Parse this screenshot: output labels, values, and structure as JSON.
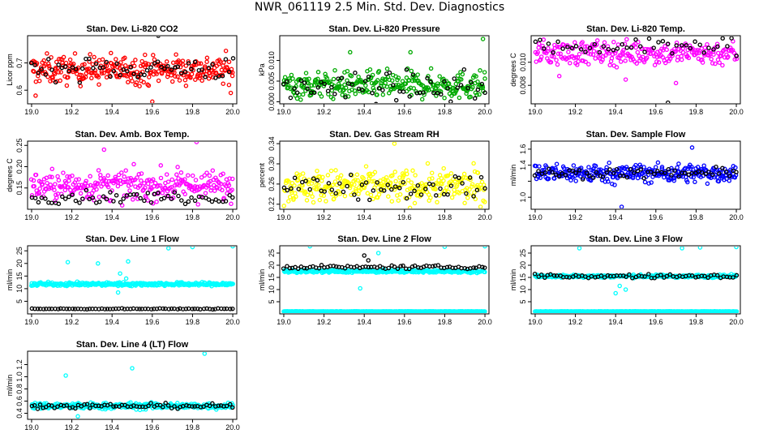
{
  "page": {
    "title": "NWR_061119  2.5 Min. Std. Dev. Diagnostics"
  },
  "chart_data": [
    {
      "type": "scatter",
      "title": "Stan. Dev. Li-820 CO2",
      "ylabel": "Licor ppm",
      "xlim": [
        18.98,
        20.02
      ],
      "ylim": [
        0.55,
        0.8
      ],
      "xticks": [
        "19.0",
        "19.2",
        "19.4",
        "19.6",
        "19.8",
        "20.0"
      ],
      "yticks": [
        0.6,
        0.7
      ],
      "ytick_labels": [
        "0.6",
        "0.7"
      ],
      "series": [
        {
          "color": "#ff0000",
          "n": 300,
          "center": 0.675,
          "spread": 0.045,
          "outliers": [
            [
              19.02,
              0.58
            ],
            [
              19.6,
              0.558
            ],
            [
              19.99,
              0.59
            ]
          ]
        },
        {
          "color": "#000000",
          "n": 60,
          "center": 0.68,
          "spread": 0.035,
          "outliers": [
            [
              19.63,
              0.8
            ]
          ]
        }
      ]
    },
    {
      "type": "scatter",
      "title": "Stan. Dev. Li-820 Pressure",
      "ylabel": "kPa",
      "xlim": [
        18.98,
        20.02
      ],
      "ylim": [
        -0.0005,
        0.016
      ],
      "xticks": [
        "19.0",
        "19.2",
        "19.4",
        "19.6",
        "19.8",
        "20.0"
      ],
      "yticks": [
        0.0,
        0.005,
        0.01
      ],
      "ytick_labels": [
        "0.000",
        "0.005",
        "0.010"
      ],
      "series": [
        {
          "color": "#00aa00",
          "n": 300,
          "center": 0.004,
          "spread": 0.0028,
          "outliers": [
            [
              19.33,
              0.012
            ],
            [
              19.63,
              0.012
            ],
            [
              19.99,
              0.0152
            ]
          ]
        },
        {
          "color": "#000000",
          "n": 60,
          "center": 0.0035,
          "spread": 0.003,
          "outliers": []
        }
      ]
    },
    {
      "type": "scatter",
      "title": "Stan. Dev. Li-820 Temp.",
      "ylabel": "degrees C",
      "xlim": [
        18.98,
        20.02
      ],
      "ylim": [
        0.0064,
        0.0123
      ],
      "xticks": [
        "19.0",
        "19.2",
        "19.4",
        "19.6",
        "19.8",
        "20.0"
      ],
      "yticks": [
        0.008,
        0.01
      ],
      "ytick_labels": [
        "0.008",
        "0.010"
      ],
      "series": [
        {
          "color": "#ff00ff",
          "n": 260,
          "center": 0.0108,
          "spread": 0.0009,
          "outliers": [
            [
              19.12,
              0.0088
            ],
            [
              19.45,
              0.0085
            ],
            [
              19.7,
              0.0082
            ]
          ]
        },
        {
          "color": "#000000",
          "n": 45,
          "center": 0.0114,
          "spread": 0.0007,
          "outliers": [
            [
              19.66,
              0.0065
            ]
          ]
        }
      ]
    },
    {
      "type": "scatter",
      "title": "Stan. Dev. Amb. Box Temp.",
      "ylabel": "degrees C",
      "xlim": [
        18.98,
        20.02
      ],
      "ylim": [
        0.1,
        0.26
      ],
      "xticks": [
        "19.0",
        "19.2",
        "19.4",
        "19.6",
        "19.8",
        "20.0"
      ],
      "yticks": [
        0.15,
        0.2,
        0.25
      ],
      "ytick_labels": [
        "0.15",
        "0.20",
        "0.25"
      ],
      "series": [
        {
          "color": "#ff00ff",
          "n": 280,
          "center": 0.155,
          "spread": 0.03,
          "outliers": [
            [
              19.82,
              0.258
            ],
            [
              19.36,
              0.24
            ]
          ]
        },
        {
          "color": "#000000",
          "n": 60,
          "center": 0.128,
          "spread": 0.012,
          "outliers": []
        }
      ]
    },
    {
      "type": "scatter",
      "title": "Stan. Dev. Gas Stream RH",
      "ylabel": "percent",
      "xlim": [
        18.98,
        20.02
      ],
      "ylim": [
        0.21,
        0.345
      ],
      "xticks": [
        "19.0",
        "19.2",
        "19.4",
        "19.6",
        "19.8",
        "20.0"
      ],
      "yticks": [
        0.22,
        0.26,
        0.3,
        0.34
      ],
      "ytick_labels": [
        "0.22",
        "0.26",
        "0.30",
        "0.34"
      ],
      "series": [
        {
          "color": "#ffff00",
          "n": 300,
          "center": 0.255,
          "spread": 0.028,
          "outliers": [
            [
              19.55,
              0.34
            ]
          ]
        },
        {
          "color": "#000000",
          "n": 55,
          "center": 0.255,
          "spread": 0.02,
          "outliers": []
        }
      ]
    },
    {
      "type": "scatter",
      "title": "Stan. Dev. Sample Flow",
      "ylabel": "ml/min",
      "xlim": [
        18.98,
        20.02
      ],
      "ylim": [
        0.85,
        1.7
      ],
      "xticks": [
        "19.0",
        "19.2",
        "19.4",
        "19.6",
        "19.8",
        "20.0"
      ],
      "yticks": [
        1.0,
        1.2,
        1.4,
        1.6
      ],
      "ytick_labels": [
        "1.0",
        "",
        "1.4",
        "1.6"
      ],
      "series": [
        {
          "color": "#0000ff",
          "n": 300,
          "center": 1.3,
          "spread": 0.1,
          "outliers": [
            [
              19.43,
              0.88
            ],
            [
              19.78,
              1.62
            ]
          ]
        },
        {
          "color": "#000000",
          "n": 60,
          "center": 1.3,
          "spread": 0.05,
          "outliers": []
        }
      ]
    },
    {
      "type": "scatter",
      "title": "Stan. Dev. Line 1 Flow",
      "ylabel": "ml/min",
      "xlim": [
        18.98,
        20.02
      ],
      "ylim": [
        0.0,
        27.0
      ],
      "xticks": [
        "19.0",
        "19.2",
        "19.4",
        "19.6",
        "19.8",
        "20.0"
      ],
      "yticks": [
        5,
        10,
        15,
        20,
        25
      ],
      "ytick_labels": [
        "5",
        "10",
        "15",
        "20",
        "25"
      ],
      "series": [
        {
          "color": "#00ffff",
          "n": 320,
          "center": 11.8,
          "spread": 0.6,
          "outliers": [
            [
              19.18,
              20.5
            ],
            [
              19.33,
              20.0
            ],
            [
              19.48,
              20.8
            ],
            [
              19.44,
              16.0
            ],
            [
              19.43,
              8.5
            ],
            [
              19.68,
              26.0
            ],
            [
              19.8,
              26.5
            ],
            [
              20.0,
              26.8
            ],
            [
              19.47,
              14.0
            ]
          ]
        },
        {
          "color": "#000000",
          "n": 70,
          "center": 2.0,
          "spread": 0.15,
          "outliers": []
        }
      ]
    },
    {
      "type": "scatter",
      "title": "Stan. Dev. Line 2 Flow",
      "ylabel": "ml/min",
      "xlim": [
        18.98,
        20.02
      ],
      "ylim": [
        0.0,
        28.0
      ],
      "xticks": [
        "19.0",
        "19.2",
        "19.4",
        "19.6",
        "19.8",
        "20.0"
      ],
      "yticks": [
        5,
        10,
        15,
        20,
        25
      ],
      "ytick_labels": [
        "5",
        "10",
        "15",
        "20",
        "25"
      ],
      "series": [
        {
          "color": "#00ffff",
          "n": 300,
          "center": 17.5,
          "spread": 0.5,
          "outliers": [
            [
              19.13,
              27.8
            ],
            [
              19.38,
              10.5
            ],
            [
              19.47,
              25.0
            ],
            [
              19.8,
              27.6
            ],
            [
              20.0,
              27.8
            ]
          ]
        },
        {
          "color": "#00ffff",
          "n": 300,
          "center": 1.0,
          "spread": 0.05,
          "outliers": []
        },
        {
          "color": "#000000",
          "n": 70,
          "center": 19.2,
          "spread": 0.6,
          "outliers": [
            [
              19.4,
              24.0
            ],
            [
              19.42,
              22.0
            ]
          ]
        }
      ]
    },
    {
      "type": "scatter",
      "title": "Stan. Dev. Line 3 Flow",
      "ylabel": "ml/min",
      "xlim": [
        18.98,
        20.02
      ],
      "ylim": [
        0.0,
        28.0
      ],
      "xticks": [
        "19.0",
        "19.2",
        "19.4",
        "19.6",
        "19.8",
        "20.0"
      ],
      "yticks": [
        5,
        10,
        15,
        20,
        25
      ],
      "ytick_labels": [
        "5",
        "10",
        "15",
        "20",
        "25"
      ],
      "series": [
        {
          "color": "#00ffff",
          "n": 300,
          "center": 15.5,
          "spread": 0.5,
          "outliers": [
            [
              19.22,
              27.0
            ],
            [
              19.4,
              8.5
            ],
            [
              19.45,
              10.0
            ],
            [
              19.42,
              11.5
            ],
            [
              19.73,
              27.0
            ],
            [
              19.82,
              27.3
            ],
            [
              20.0,
              27.5
            ]
          ]
        },
        {
          "color": "#00ffff",
          "n": 300,
          "center": 1.0,
          "spread": 0.05,
          "outliers": []
        },
        {
          "color": "#000000",
          "n": 65,
          "center": 15.5,
          "spread": 0.7,
          "outliers": []
        }
      ]
    },
    {
      "type": "scatter",
      "title": "Stan. Dev. Line 4 (LT) Flow",
      "ylabel": "ml/min",
      "xlim": [
        18.98,
        20.02
      ],
      "ylim": [
        0.3,
        1.42
      ],
      "xticks": [
        "19.0",
        "19.2",
        "19.4",
        "19.6",
        "19.8",
        "20.0"
      ],
      "yticks": [
        0.4,
        0.6,
        0.8,
        1.0,
        1.2
      ],
      "ytick_labels": [
        "0.4",
        "0.6",
        "0.8",
        "1.0",
        "1.2"
      ],
      "series": [
        {
          "color": "#00ffff",
          "n": 320,
          "center": 0.52,
          "spread": 0.045,
          "outliers": [
            [
              19.17,
              1.02
            ],
            [
              19.5,
              1.14
            ],
            [
              19.86,
              1.38
            ],
            [
              19.23,
              0.35
            ]
          ]
        },
        {
          "color": "#000000",
          "n": 70,
          "center": 0.52,
          "spread": 0.035,
          "outliers": []
        }
      ]
    }
  ]
}
